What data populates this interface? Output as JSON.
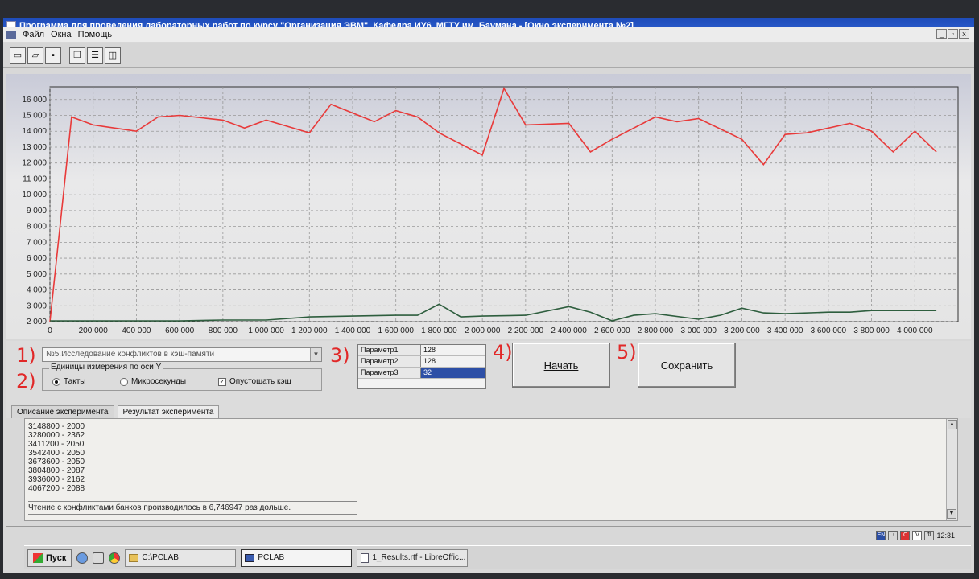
{
  "window": {
    "title": "Программа для проведения лабораторных работ по курсу \"Организация ЭВМ\", Кафедра ИУ6, МГТУ им. Баумана - [Окно эксперимента №2]",
    "controls": [
      "_",
      "▫",
      "x"
    ]
  },
  "menu": [
    "Файл",
    "Окна",
    "Помощь"
  ],
  "toolbar": {
    "icons": [
      "new-icon",
      "open-icon",
      "save-icon",
      "cascade-icon",
      "tile-horizontal-icon",
      "tile-vertical-icon"
    ]
  },
  "chart_data": {
    "type": "line",
    "title": "",
    "xlabel": "",
    "ylabel": "",
    "xlim": [
      0,
      4200000
    ],
    "ylim": [
      2000,
      16800
    ],
    "x_ticks": [
      0,
      200000,
      400000,
      600000,
      800000,
      1000000,
      1200000,
      1400000,
      1600000,
      1800000,
      2000000,
      2200000,
      2400000,
      2600000,
      2800000,
      3000000,
      3200000,
      3400000,
      3600000,
      3800000,
      4000000
    ],
    "x_tick_labels": [
      "0",
      "200 000",
      "400 000",
      "600 000",
      "800 000",
      "1 000 000",
      "1 200 000",
      "1 400 000",
      "1 600 000",
      "1 800 000",
      "2 000 000",
      "2 200 000",
      "2 400 000",
      "2 600 000",
      "2 800 000",
      "3 000 000",
      "3 200 000",
      "3 400 000",
      "3 600 000",
      "3 800 000",
      "4 000 000"
    ],
    "y_ticks": [
      2000,
      3000,
      4000,
      5000,
      6000,
      7000,
      8000,
      9000,
      10000,
      11000,
      12000,
      13000,
      14000,
      15000,
      16000
    ],
    "y_tick_labels": [
      "2 000",
      "3 000",
      "4 000",
      "5 000",
      "6 000",
      "7 000",
      "8 000",
      "9 000",
      "10 000",
      "11 000",
      "12 000",
      "13 000",
      "14 000",
      "15 000",
      "16 000"
    ],
    "grid": true,
    "series": [
      {
        "color": "#e83a3a",
        "x": [
          0,
          100000,
          200000,
          400000,
          500000,
          600000,
          800000,
          900000,
          1000000,
          1200000,
          1300000,
          1500000,
          1600000,
          1700000,
          1800000,
          2000000,
          2100000,
          2200000,
          2400000,
          2500000,
          2600000,
          2800000,
          2900000,
          3000000,
          3200000,
          3300000,
          3400000,
          3500000,
          3700000,
          3800000,
          3900000,
          4000000,
          4100000
        ],
        "y": [
          2000,
          14900,
          14400,
          14000,
          14900,
          15000,
          14700,
          14200,
          14700,
          13900,
          15700,
          14600,
          15300,
          14900,
          13900,
          12500,
          16700,
          14400,
          14500,
          12700,
          13500,
          14900,
          14600,
          14800,
          13500,
          11900,
          13800,
          13900,
          14500,
          14000,
          12700,
          14000,
          12700
        ]
      },
      {
        "color": "#2e5e3e",
        "x": [
          0,
          100000,
          200000,
          400000,
          600000,
          800000,
          1000000,
          1200000,
          1400000,
          1600000,
          1700000,
          1800000,
          1900000,
          2000000,
          2200000,
          2400000,
          2500000,
          2600000,
          2700000,
          2800000,
          3000000,
          3100000,
          3200000,
          3300000,
          3400000,
          3600000,
          3700000,
          3800000,
          3900000,
          4000000,
          4100000
        ],
        "y": [
          2050,
          2050,
          2050,
          2050,
          2050,
          2100,
          2100,
          2300,
          2350,
          2400,
          2400,
          3100,
          2300,
          2350,
          2400,
          2950,
          2600,
          2050,
          2400,
          2500,
          2150,
          2400,
          2850,
          2550,
          2500,
          2600,
          2600,
          2700,
          2700,
          2700,
          2700
        ]
      }
    ]
  },
  "annotations": [
    "1)",
    "2)",
    "3)",
    "4)",
    "5)"
  ],
  "experiment": {
    "selected": "№5.Исследование конфликтов в кэш-памяти"
  },
  "units": {
    "legend": "Единицы измерения по оси Y",
    "options": [
      "Такты",
      "Микросекунды"
    ],
    "selected_index": 0,
    "flush_cache_label": "Опустошать кэш",
    "flush_cache_checked": true
  },
  "params": [
    {
      "name": "Параметр1",
      "value": "128"
    },
    {
      "name": "Параметр2",
      "value": "128"
    },
    {
      "name": "Параметр3",
      "value": "32"
    }
  ],
  "buttons": {
    "start": "Начать",
    "save": "Сохранить"
  },
  "tabs": [
    "Описание эксперимента",
    "Результат эксперимента"
  ],
  "results": {
    "lines": [
      "3148800 - 2000",
      "3280000 - 2362",
      "3411200 - 2050",
      "3542400 - 2050",
      "3673600 - 2050",
      "3804800 - 2087",
      "3936000 - 2162",
      "4067200 - 2088"
    ],
    "summary": "Чтение с конфликтами банков производилось в 6,746947 раз дольше."
  },
  "tray": {
    "lang": "EN",
    "time": "12:31"
  },
  "taskbar": {
    "start": "Пуск",
    "tasks": [
      "C:\\PCLAB",
      "PCLAB",
      "1_Results.rtf - LibreOffic..."
    ]
  }
}
